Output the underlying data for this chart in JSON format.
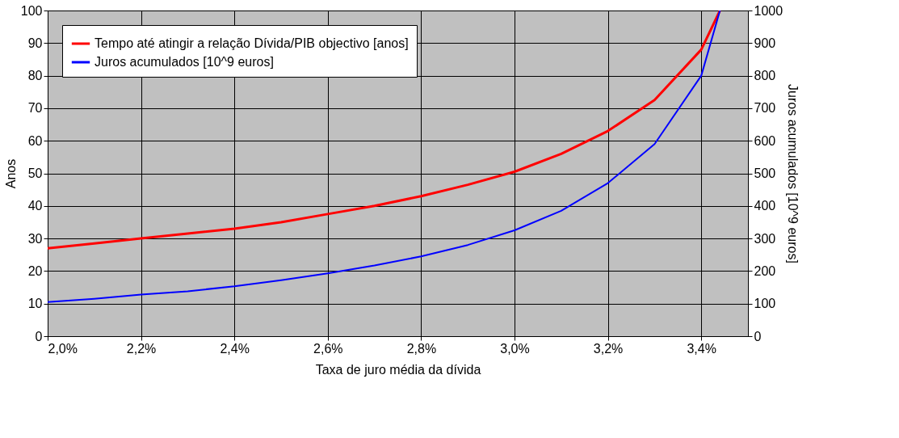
{
  "chart_data": {
    "type": "line",
    "xlabel": "Taxa de juro média da dívida",
    "ylabel": "Anos",
    "y2label": "Juros acumulados [10^9 euros]",
    "series": [
      {
        "name": "Tempo até atingir a relação Dívida/PIB objectivo [anos]",
        "color": "#ff0000",
        "x": [
          2.0,
          2.1,
          2.2,
          2.3,
          2.4,
          2.5,
          2.6,
          2.7,
          2.8,
          2.9,
          3.0,
          3.1,
          3.2,
          3.3,
          3.4,
          3.44
        ],
        "values": [
          27,
          28.5,
          30,
          31.5,
          33,
          35,
          37.5,
          40,
          43,
          46.5,
          50.5,
          56,
          63,
          72.5,
          88,
          100
        ]
      },
      {
        "name": "Juros acumulados [10^9 euros]",
        "color": "#0000ff",
        "axis": "y2",
        "x": [
          2.0,
          2.1,
          2.2,
          2.3,
          2.4,
          2.5,
          2.6,
          2.7,
          2.8,
          2.9,
          3.0,
          3.1,
          3.2,
          3.3,
          3.4,
          3.44
        ],
        "values": [
          105,
          115,
          128,
          138,
          153,
          172,
          193,
          217,
          245,
          280,
          325,
          385,
          470,
          590,
          800,
          1000
        ]
      }
    ],
    "xlim": [
      2.0,
      3.5
    ],
    "xticks": [
      {
        "value": 2.0,
        "label": "2,0%"
      },
      {
        "value": 2.2,
        "label": "2,2%"
      },
      {
        "value": 2.4,
        "label": "2,4%"
      },
      {
        "value": 2.6,
        "label": "2,6%"
      },
      {
        "value": 2.8,
        "label": "2,8%"
      },
      {
        "value": 3.0,
        "label": "3,0%"
      },
      {
        "value": 3.2,
        "label": "3,2%"
      },
      {
        "value": 3.4,
        "label": "3,4%"
      }
    ],
    "ylim": [
      0,
      100
    ],
    "yticks": [
      0,
      10,
      20,
      30,
      40,
      50,
      60,
      70,
      80,
      90,
      100
    ],
    "y2lim": [
      0,
      1000
    ],
    "y2ticks": [
      0,
      100,
      200,
      300,
      400,
      500,
      600,
      700,
      800,
      900,
      1000
    ],
    "grid": true,
    "legend": "top left",
    "marker": "none",
    "line_style": "solid"
  }
}
